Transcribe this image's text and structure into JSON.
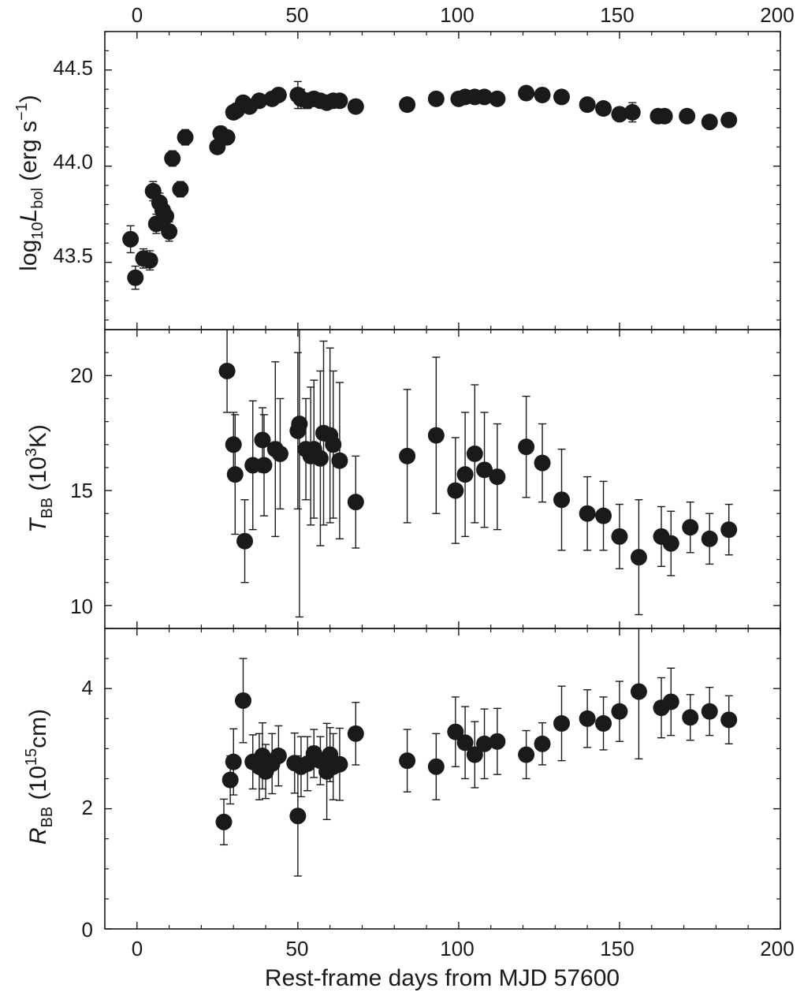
{
  "colors": {
    "marker": "#1a1a1a",
    "frame": "#1a1a1a",
    "background": "#ffffff"
  },
  "chart_data": {
    "type": "scatter",
    "title": "",
    "xlabel": "Rest-frame days from MJD 57600",
    "xlim": [
      -10,
      200
    ],
    "xticks": [
      "0",
      "50",
      "100",
      "150",
      "200"
    ],
    "top_xticks": [
      "0",
      "50",
      "100",
      "150",
      "200"
    ],
    "panels": [
      {
        "id": "lbol",
        "ylabel": {
          "pre": "log",
          "sub1": "10",
          "var": "L",
          "sub2": "bol",
          "unit_open": " (erg s",
          "sup": "−1",
          "unit_close": ")"
        },
        "ylim": [
          43.15,
          44.7
        ],
        "yticks": [
          "43.5",
          "44.0",
          "44.5"
        ],
        "points": [
          [
            -2,
            43.62,
            0.07
          ],
          [
            -0.5,
            43.42,
            0.06
          ],
          [
            2,
            43.52,
            0.05
          ],
          [
            4,
            43.51,
            0.05
          ],
          [
            5,
            43.87,
            0.05
          ],
          [
            6,
            43.7,
            0.05
          ],
          [
            7,
            43.81,
            0.05
          ],
          [
            8,
            43.77,
            0.05
          ],
          [
            9,
            43.74,
            0.05
          ],
          [
            10,
            43.66,
            0.05
          ],
          [
            11,
            44.04,
            0.04
          ],
          [
            13.5,
            43.88,
            0.04
          ],
          [
            15,
            44.15,
            0.04
          ],
          [
            25,
            44.1,
            0.03
          ],
          [
            26,
            44.17,
            0.03
          ],
          [
            28,
            44.15,
            0.03
          ],
          [
            30,
            44.28,
            0.03
          ],
          [
            31,
            44.29,
            0.03
          ],
          [
            33,
            44.33,
            0.03
          ],
          [
            35,
            44.31,
            0.03
          ],
          [
            38,
            44.34,
            0.03
          ],
          [
            42,
            44.35,
            0.03
          ],
          [
            44,
            44.37,
            0.03
          ],
          [
            50,
            44.37,
            0.07
          ],
          [
            51,
            44.35,
            0.05
          ],
          [
            53,
            44.34,
            0.04
          ],
          [
            55,
            44.35,
            0.03
          ],
          [
            57,
            44.34,
            0.03
          ],
          [
            59,
            44.33,
            0.03
          ],
          [
            61,
            44.34,
            0.03
          ],
          [
            63,
            44.34,
            0.03
          ],
          [
            68,
            44.31,
            0.03
          ],
          [
            84,
            44.32,
            0.03
          ],
          [
            93,
            44.35,
            0.03
          ],
          [
            100,
            44.35,
            0.03
          ],
          [
            102,
            44.36,
            0.03
          ],
          [
            105,
            44.36,
            0.03
          ],
          [
            108,
            44.36,
            0.03
          ],
          [
            112,
            44.35,
            0.03
          ],
          [
            121,
            44.38,
            0.03
          ],
          [
            126,
            44.37,
            0.03
          ],
          [
            132,
            44.36,
            0.03
          ],
          [
            140,
            44.32,
            0.03
          ],
          [
            145,
            44.3,
            0.03
          ],
          [
            150,
            44.27,
            0.03
          ],
          [
            154,
            44.28,
            0.05
          ],
          [
            162,
            44.26,
            0.03
          ],
          [
            164,
            44.26,
            0.03
          ],
          [
            171,
            44.26,
            0.03
          ],
          [
            178,
            44.23,
            0.03
          ],
          [
            184,
            44.24,
            0.03
          ]
        ]
      },
      {
        "id": "tbb",
        "ylabel": {
          "var": "T",
          "sub": "BB",
          "unit_open": " (10",
          "sup": "3",
          "unit_close": "K)"
        },
        "ylim": [
          9.0,
          22.0
        ],
        "yticks": [
          "10",
          "15",
          "20"
        ],
        "points": [
          [
            28,
            20.2,
            1.8
          ],
          [
            30,
            17.0,
            1.4
          ],
          [
            30.5,
            15.7,
            2.6
          ],
          [
            33.5,
            12.8,
            1.8
          ],
          [
            36,
            16.1,
            2.8
          ],
          [
            39,
            17.2,
            1.4
          ],
          [
            39.5,
            16.1,
            2.2
          ],
          [
            43,
            16.8,
            3.8
          ],
          [
            44.5,
            16.6,
            2.4
          ],
          [
            50,
            17.6,
            3.4
          ],
          [
            50.5,
            17.9,
            8.4
          ],
          [
            52.5,
            16.8,
            2.2
          ],
          [
            54,
            16.5,
            3.0
          ],
          [
            55,
            16.8,
            3.0
          ],
          [
            57,
            16.4,
            3.8
          ],
          [
            58,
            17.5,
            4.0
          ],
          [
            60,
            17.4,
            3.8
          ],
          [
            61,
            17.0,
            3.2
          ],
          [
            63,
            16.3,
            3.4
          ],
          [
            68,
            14.5,
            2.0
          ],
          [
            84,
            16.5,
            2.9
          ],
          [
            93,
            17.4,
            3.4
          ],
          [
            99,
            15.0,
            2.3
          ],
          [
            102,
            15.7,
            2.7
          ],
          [
            105,
            16.6,
            3.0
          ],
          [
            108,
            15.9,
            2.5
          ],
          [
            112,
            15.6,
            2.3
          ],
          [
            121,
            16.9,
            2.2
          ],
          [
            126,
            16.2,
            1.7
          ],
          [
            132,
            14.6,
            2.2
          ],
          [
            140,
            14.0,
            1.6
          ],
          [
            145,
            13.9,
            1.5
          ],
          [
            150,
            13.0,
            1.4
          ],
          [
            156,
            12.1,
            2.5
          ],
          [
            163,
            13.0,
            1.3
          ],
          [
            166,
            12.7,
            1.4
          ],
          [
            172,
            13.4,
            1.1
          ],
          [
            178,
            12.9,
            1.1
          ],
          [
            184,
            13.3,
            1.1
          ]
        ]
      },
      {
        "id": "rbb",
        "ylabel": {
          "var": "R",
          "sub": "BB",
          "unit_open": " (10",
          "sup": "15",
          "unit_close": "cm)"
        },
        "ylim": [
          0,
          5.0
        ],
        "yticks": [
          "0",
          "2",
          "4"
        ],
        "points": [
          [
            27,
            1.78,
            0.38
          ],
          [
            29,
            2.48,
            0.4
          ],
          [
            30,
            2.78,
            0.55
          ],
          [
            33,
            3.8,
            0.7
          ],
          [
            36,
            2.78,
            0.45
          ],
          [
            38,
            2.7,
            0.55
          ],
          [
            39,
            2.88,
            0.55
          ],
          [
            40,
            2.62,
            0.45
          ],
          [
            42,
            2.75,
            0.5
          ],
          [
            44,
            2.88,
            0.5
          ],
          [
            49,
            2.76,
            0.5
          ],
          [
            50,
            1.88,
            1.0
          ],
          [
            51,
            2.7,
            0.5
          ],
          [
            53,
            2.75,
            0.45
          ],
          [
            55,
            2.92,
            0.4
          ],
          [
            57,
            2.8,
            0.4
          ],
          [
            59,
            2.62,
            0.8
          ],
          [
            60,
            2.9,
            0.45
          ],
          [
            61,
            2.7,
            0.55
          ],
          [
            63,
            2.74,
            0.6
          ],
          [
            68,
            3.25,
            0.52
          ],
          [
            84,
            2.8,
            0.52
          ],
          [
            93,
            2.7,
            0.55
          ],
          [
            99,
            3.28,
            0.58
          ],
          [
            102,
            3.1,
            0.6
          ],
          [
            105,
            2.9,
            0.55
          ],
          [
            108,
            3.08,
            0.58
          ],
          [
            112,
            3.12,
            0.55
          ],
          [
            121,
            2.9,
            0.4
          ],
          [
            126,
            3.08,
            0.35
          ],
          [
            132,
            3.42,
            0.62
          ],
          [
            140,
            3.5,
            0.48
          ],
          [
            145,
            3.42,
            0.44
          ],
          [
            150,
            3.62,
            0.5
          ],
          [
            156,
            3.95,
            1.12
          ],
          [
            163,
            3.68,
            0.5
          ],
          [
            166,
            3.78,
            0.56
          ],
          [
            172,
            3.52,
            0.38
          ],
          [
            178,
            3.62,
            0.4
          ],
          [
            184,
            3.48,
            0.4
          ]
        ]
      }
    ]
  }
}
